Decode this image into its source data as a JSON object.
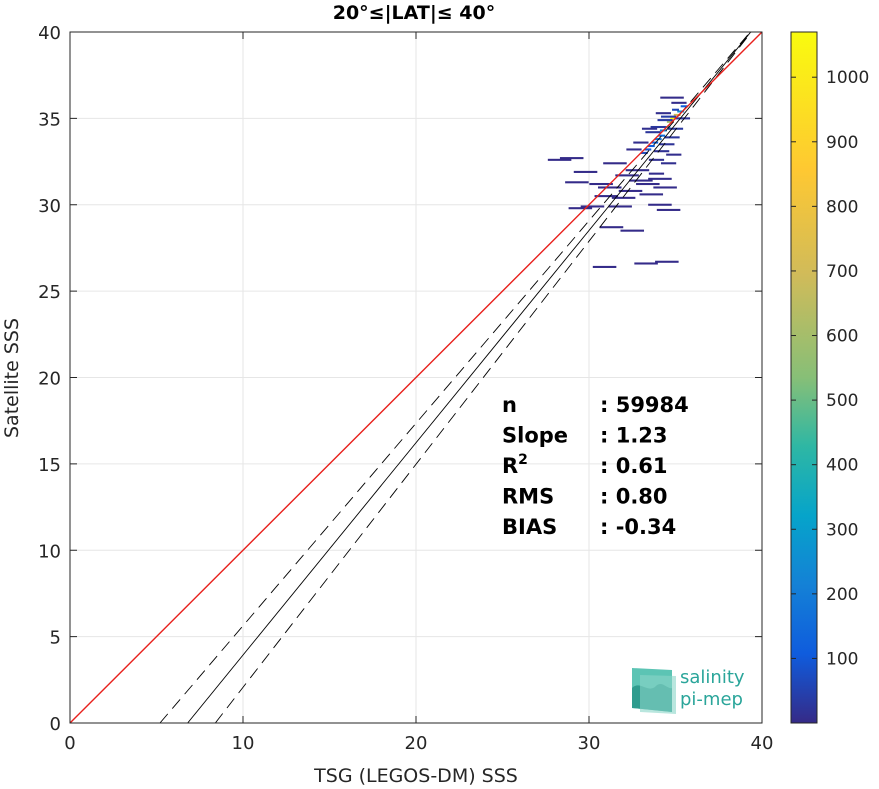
{
  "chart_data": {
    "type": "heatmap",
    "title": "20°≤|LAT|≤ 40°",
    "xlabel": "TSG (LEGOS-DM) SSS",
    "ylabel": "Satellite SSS",
    "xlim": [
      0,
      40
    ],
    "ylim": [
      0,
      40
    ],
    "xticks": [
      "0",
      "10",
      "20",
      "30",
      "40"
    ],
    "yticks": [
      "0",
      "5",
      "10",
      "15",
      "20",
      "25",
      "30",
      "35",
      "40"
    ],
    "grid": true,
    "colorbar": {
      "min": 0,
      "max": 1070,
      "ticks": [
        "100",
        "200",
        "300",
        "400",
        "500",
        "600",
        "700",
        "800",
        "900",
        "1000"
      ],
      "tick_values": [
        100,
        200,
        300,
        400,
        500,
        600,
        700,
        800,
        900,
        1000
      ]
    },
    "lines": {
      "identity": {
        "color": "#e8201c",
        "x": [
          0,
          40
        ],
        "y": [
          0,
          40
        ]
      },
      "regression": {
        "color": "#000000",
        "slope": 1.23,
        "x": [
          6.8,
          40
        ],
        "y": [
          0,
          40.8
        ]
      },
      "upper_bound": {
        "color": "#000000",
        "dashed": true,
        "x": [
          5.2,
          40
        ],
        "y": [
          0,
          40.8
        ]
      },
      "lower_bound": {
        "color": "#000000",
        "dashed": true,
        "x": [
          8.4,
          40
        ],
        "y": [
          0,
          40.8
        ]
      }
    },
    "stats": [
      {
        "label": "n",
        "value": ": 59984"
      },
      {
        "label": "Slope",
        "value": ": 1.23"
      },
      {
        "label": "R",
        "sup": "2",
        "value": ": 0.61"
      },
      {
        "label": "RMS",
        "value": ": 0.80"
      },
      {
        "label": "BIAS",
        "value": ": -0.34"
      }
    ],
    "density_cells": [
      {
        "x": 35.5,
        "y": 35.7,
        "v": 120
      },
      {
        "x": 35.3,
        "y": 35.4,
        "v": 250
      },
      {
        "x": 35.1,
        "y": 35.2,
        "v": 700
      },
      {
        "x": 34.9,
        "y": 35.0,
        "v": 1050
      },
      {
        "x": 34.7,
        "y": 34.8,
        "v": 600
      },
      {
        "x": 34.5,
        "y": 34.5,
        "v": 350
      },
      {
        "x": 34.3,
        "y": 34.3,
        "v": 220
      },
      {
        "x": 34.2,
        "y": 34.0,
        "v": 150
      },
      {
        "x": 34.0,
        "y": 33.8,
        "v": 180
      },
      {
        "x": 33.8,
        "y": 33.6,
        "v": 130
      },
      {
        "x": 33.6,
        "y": 33.4,
        "v": 110
      },
      {
        "x": 33.4,
        "y": 33.2,
        "v": 90
      },
      {
        "x": 33.2,
        "y": 33.0,
        "v": 70
      },
      {
        "x": 35.0,
        "y": 35.5,
        "v": 60
      },
      {
        "x": 34.6,
        "y": 35.1,
        "v": 40
      },
      {
        "x": 34.4,
        "y": 34.9,
        "v": 35
      },
      {
        "x": 34.0,
        "y": 34.5,
        "v": 30
      },
      {
        "x": 33.7,
        "y": 34.2,
        "v": 25
      },
      {
        "x": 35.4,
        "y": 35.0,
        "v": 20
      },
      {
        "x": 35.0,
        "y": 34.4,
        "v": 30
      },
      {
        "x": 34.8,
        "y": 33.9,
        "v": 25
      },
      {
        "x": 34.5,
        "y": 33.5,
        "v": 20
      },
      {
        "x": 34.2,
        "y": 33.1,
        "v": 15
      },
      {
        "x": 33.9,
        "y": 32.6,
        "v": 12
      },
      {
        "x": 34.6,
        "y": 32.4,
        "v": 10
      },
      {
        "x": 34.9,
        "y": 32.9,
        "v": 8
      },
      {
        "x": 33.5,
        "y": 34.4,
        "v": 10
      },
      {
        "x": 34.3,
        "y": 35.3,
        "v": 8
      },
      {
        "x": 35.2,
        "y": 35.9,
        "v": 6
      },
      {
        "x": 34.8,
        "y": 36.2,
        "v": 4
      },
      {
        "x": 33.0,
        "y": 33.6,
        "v": 8
      },
      {
        "x": 32.6,
        "y": 33.2,
        "v": 6
      },
      {
        "x": 33.9,
        "y": 31.8,
        "v": 6
      },
      {
        "x": 34.1,
        "y": 31.5,
        "v": 5
      },
      {
        "x": 33.4,
        "y": 31.2,
        "v": 4
      },
      {
        "x": 34.4,
        "y": 31.0,
        "v": 4
      },
      {
        "x": 33.6,
        "y": 30.6,
        "v": 4
      },
      {
        "x": 32.0,
        "y": 30.4,
        "v": 3
      },
      {
        "x": 31.0,
        "y": 30.5,
        "v": 3
      },
      {
        "x": 30.2,
        "y": 29.9,
        "v": 3
      },
      {
        "x": 29.5,
        "y": 29.8,
        "v": 3
      },
      {
        "x": 31.8,
        "y": 29.9,
        "v": 2
      },
      {
        "x": 34.1,
        "y": 30.0,
        "v": 3
      },
      {
        "x": 34.6,
        "y": 29.7,
        "v": 2
      },
      {
        "x": 32.5,
        "y": 28.5,
        "v": 2
      },
      {
        "x": 31.3,
        "y": 28.7,
        "v": 2
      },
      {
        "x": 33.3,
        "y": 26.6,
        "v": 2
      },
      {
        "x": 34.5,
        "y": 26.7,
        "v": 2
      },
      {
        "x": 30.9,
        "y": 26.4,
        "v": 2
      },
      {
        "x": 29.0,
        "y": 32.7,
        "v": 2
      },
      {
        "x": 29.8,
        "y": 31.9,
        "v": 2
      },
      {
        "x": 30.7,
        "y": 31.2,
        "v": 2
      },
      {
        "x": 29.3,
        "y": 31.3,
        "v": 2
      },
      {
        "x": 28.3,
        "y": 32.6,
        "v": 2
      },
      {
        "x": 31.5,
        "y": 32.4,
        "v": 2
      },
      {
        "x": 32.2,
        "y": 31.7,
        "v": 2
      },
      {
        "x": 31.2,
        "y": 31.0,
        "v": 2
      },
      {
        "x": 32.8,
        "y": 32.0,
        "v": 3
      },
      {
        "x": 33.0,
        "y": 31.4,
        "v": 3
      },
      {
        "x": 32.4,
        "y": 30.8,
        "v": 2
      }
    ]
  },
  "logo": {
    "line1": "salinity",
    "line2": "pi-mep"
  }
}
